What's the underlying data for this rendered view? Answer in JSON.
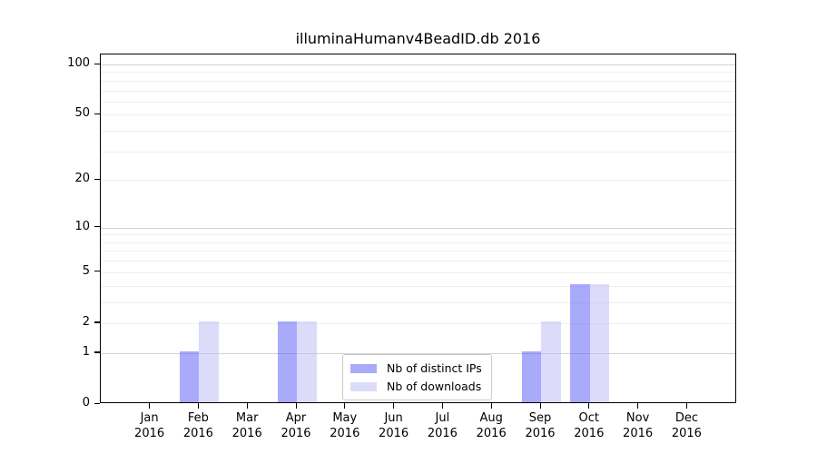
{
  "chart_data": {
    "type": "bar",
    "title": "illuminaHumanv4BeadID.db 2016",
    "x": {
      "months": [
        "Jan",
        "Feb",
        "Mar",
        "Apr",
        "May",
        "Jun",
        "Jul",
        "Aug",
        "Sep",
        "Oct",
        "Nov",
        "Dec"
      ],
      "year": "2016"
    },
    "series": [
      {
        "name": "Nb of distinct IPs",
        "color": "rgba(85,85,245,0.5)",
        "values": [
          0,
          1,
          0,
          2,
          0,
          0,
          0,
          0,
          1,
          4,
          0,
          0
        ]
      },
      {
        "name": "Nb of downloads",
        "color": "rgba(185,185,245,0.5)",
        "values": [
          0,
          2,
          0,
          2,
          0,
          0,
          0,
          0,
          2,
          4,
          0,
          0
        ]
      }
    ],
    "yscale": "log1p",
    "ylim": [
      0,
      100
    ],
    "yticks": [
      0,
      1,
      2,
      5,
      10,
      20,
      50,
      100
    ],
    "gridlines": {
      "major": [
        1,
        10,
        100
      ],
      "minor": [
        2,
        3,
        4,
        5,
        6,
        7,
        8,
        9,
        20,
        30,
        40,
        50,
        60,
        70,
        80,
        90
      ]
    },
    "legend": {
      "position": "bottom-center",
      "entries": [
        "Nb of distinct IPs",
        "Nb of downloads"
      ]
    },
    "grid_on": true,
    "axis_color": "#000000",
    "background_color": "#ffffff"
  }
}
